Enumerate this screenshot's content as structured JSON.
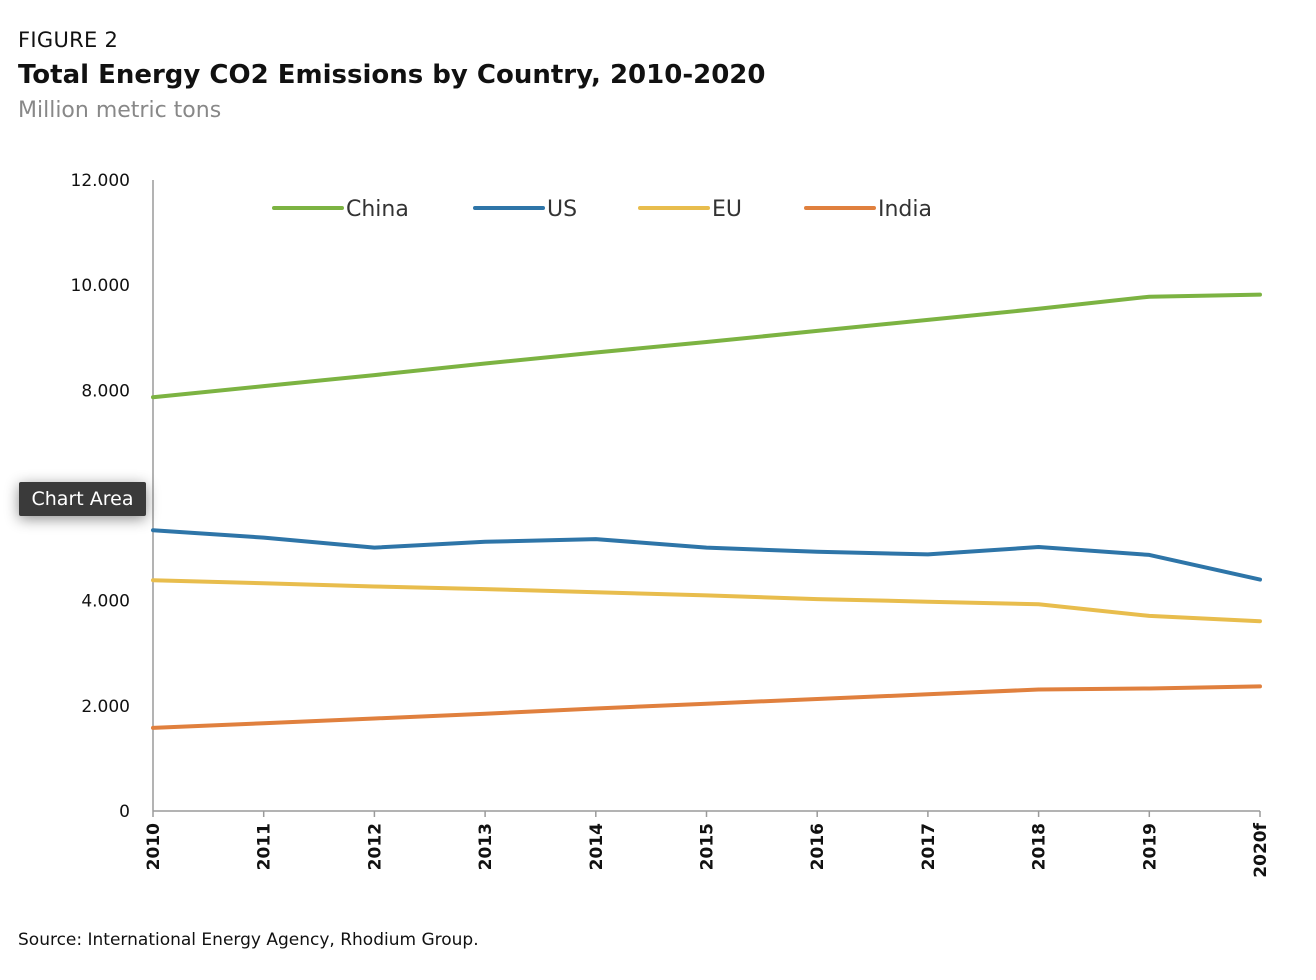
{
  "figure": {
    "label": "FIGURE 2",
    "title": "Total Energy CO2 Emissions by Country, 2010-2020",
    "subtitle": "Million metric tons",
    "source": "Source: International Energy Agency, Rhodium Group."
  },
  "tooltip": {
    "text": "Chart Area"
  },
  "chart_data": {
    "type": "line",
    "title": "",
    "xlabel": "",
    "ylabel": "",
    "categories": [
      "2010",
      "2011",
      "2012",
      "2013",
      "2014",
      "2015",
      "2016",
      "2017",
      "2018",
      "2019",
      "2020f"
    ],
    "ylim": [
      0,
      12000
    ],
    "yticks": [
      0,
      2000,
      4000,
      6000,
      8000,
      10000,
      12000
    ],
    "ytick_labels": [
      "0",
      "2.000",
      "4.000",
      "",
      "8.000",
      "10.000",
      "12.000"
    ],
    "grid": false,
    "legend_position": "top",
    "series": [
      {
        "name": "China",
        "color": "#7cb342",
        "values": [
          7870,
          8080,
          8290,
          8510,
          8720,
          8920,
          9130,
          9340,
          9550,
          9780,
          9820
        ]
      },
      {
        "name": "US",
        "color": "#2e75a8",
        "values": [
          5340,
          5200,
          5010,
          5120,
          5170,
          5010,
          4930,
          4880,
          5020,
          4870,
          4400
        ]
      },
      {
        "name": "EU",
        "color": "#e8bd4d",
        "values": [
          4390,
          4330,
          4270,
          4220,
          4160,
          4100,
          4030,
          3980,
          3930,
          3710,
          3610
        ]
      },
      {
        "name": "India",
        "color": "#e0803e",
        "values": [
          1580,
          1670,
          1760,
          1850,
          1950,
          2040,
          2130,
          2220,
          2310,
          2330,
          2370
        ]
      }
    ]
  }
}
